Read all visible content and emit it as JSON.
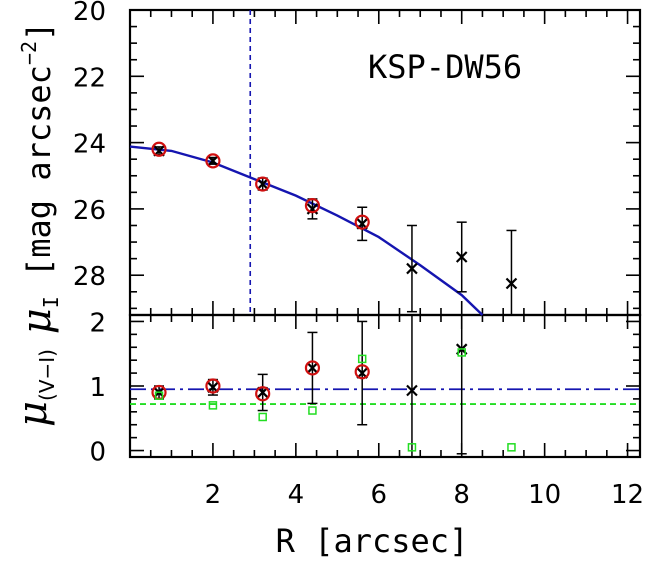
{
  "chart_data": [
    {
      "type": "scatter",
      "panel": "top",
      "object_label": "KSP-DW56",
      "xlabel": "R [arcsec]",
      "ylabel": "μI [mag arcsec⁻²]",
      "ylabel_main": "μ",
      "ylabel_sub": "I",
      "ylabel_rest": "[mag arcsec",
      "ylabel_exp": "−2",
      "ylabel_close": "]",
      "xlim": [
        0,
        12.3
      ],
      "ylim": [
        29.2,
        20
      ],
      "inverted_y": true,
      "xticks": [
        "2",
        "4",
        "6",
        "8",
        "10",
        "12"
      ],
      "yticks": [
        "20",
        "22",
        "24",
        "26",
        "28"
      ],
      "colors": {
        "fit": "#1515b0",
        "circle": "#d01010",
        "points": "#000000"
      },
      "series": [
        {
          "marker": "x",
          "x": [
            0.7,
            2.0,
            3.2,
            4.4,
            5.6,
            6.8,
            8.0,
            9.2
          ],
          "y": [
            24.25,
            24.55,
            25.25,
            26.0,
            26.45,
            27.8,
            27.45,
            28.25
          ],
          "yerr_low": [
            0.12,
            0.1,
            0.18,
            0.3,
            0.5,
            1.3,
            1.05,
            1.6
          ],
          "yerr_high": [
            0.12,
            0.1,
            0.18,
            0.3,
            0.5,
            1.3,
            1.05,
            1.6
          ]
        },
        {
          "marker": "circle",
          "x": [
            0.7,
            2.0,
            3.2,
            4.4,
            5.6
          ],
          "y": [
            24.2,
            24.55,
            25.25,
            25.9,
            26.4
          ]
        },
        {
          "marker": "fit-line",
          "x": [
            0.0,
            1.0,
            2.0,
            3.0,
            4.0,
            5.0,
            6.0,
            7.0,
            8.0,
            8.5
          ],
          "y": [
            24.12,
            24.25,
            24.6,
            25.1,
            25.6,
            26.2,
            26.85,
            27.7,
            28.6,
            29.2
          ]
        },
        {
          "marker": "vline-dashed",
          "x": [
            2.9
          ]
        }
      ]
    },
    {
      "type": "scatter",
      "panel": "bottom",
      "xlabel": "R [arcsec]",
      "ylabel": "μ(V−I)",
      "ylabel_main": "μ",
      "ylabel_sub": "(V−I)",
      "xlim": [
        0,
        12.3
      ],
      "ylim": [
        -0.1,
        2.1
      ],
      "xticks": [
        "2",
        "4",
        "6",
        "8",
        "10",
        "12"
      ],
      "yticks": [
        "0",
        "1",
        "2"
      ],
      "colors": {
        "mean": "#1515b0",
        "green": "#22dd22",
        "circle": "#d01010",
        "points": "#000000"
      },
      "series": [
        {
          "marker": "x",
          "x": [
            0.7,
            2.0,
            3.2,
            4.4,
            5.6,
            6.8,
            8.0
          ],
          "y": [
            0.9,
            0.98,
            0.9,
            1.28,
            1.2,
            0.93,
            1.57
          ],
          "yerr_low": [
            0.1,
            0.12,
            0.28,
            0.55,
            0.8,
            1.93,
            1.62
          ],
          "yerr_high": [
            0.1,
            0.12,
            0.28,
            0.55,
            0.8,
            1.93,
            1.62
          ]
        },
        {
          "marker": "circle",
          "x": [
            0.7,
            2.0,
            3.2,
            4.4,
            5.6
          ],
          "y": [
            0.9,
            1.0,
            0.88,
            1.28,
            1.22
          ]
        },
        {
          "marker": "square",
          "x": [
            0.7,
            2.0,
            3.2,
            4.4,
            5.6,
            6.8,
            8.0,
            9.2
          ],
          "y": [
            0.85,
            0.7,
            0.52,
            0.62,
            1.42,
            0.05,
            1.52,
            0.05
          ]
        },
        {
          "marker": "hline-dashdot",
          "y": [
            0.95
          ]
        },
        {
          "marker": "hline-dashed",
          "y": [
            0.72
          ]
        }
      ]
    }
  ]
}
